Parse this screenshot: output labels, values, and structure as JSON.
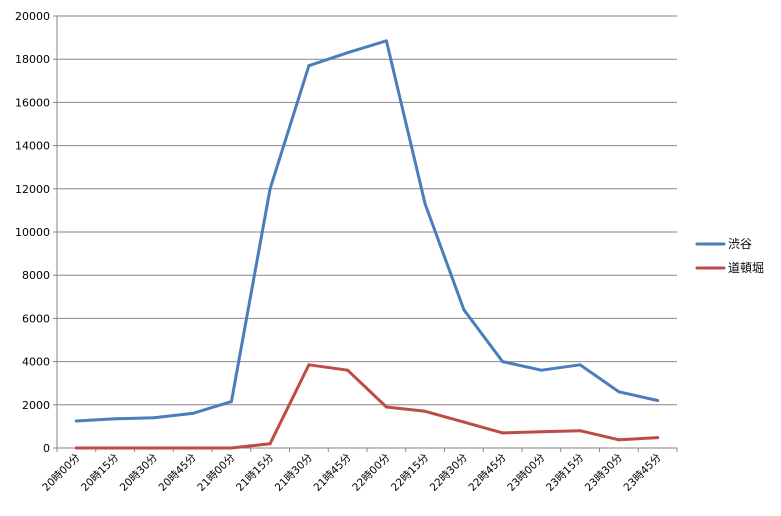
{
  "chart_data": {
    "type": "line",
    "title": "",
    "xlabel": "",
    "ylabel": "",
    "ylim": [
      0,
      20000
    ],
    "yticks": [
      0,
      2000,
      4000,
      6000,
      8000,
      10000,
      12000,
      14000,
      16000,
      18000,
      20000
    ],
    "grid": true,
    "legend_position": "right",
    "categories": [
      "20時00分",
      "20時15分",
      "20時30分",
      "20時45分",
      "21時00分",
      "21時15分",
      "21時30分",
      "21時45分",
      "22時00分",
      "22時15分",
      "22時30分",
      "22時45分",
      "23時00分",
      "23時15分",
      "23時30分",
      "23時45分"
    ],
    "series": [
      {
        "name": "渋谷",
        "color": "#4a7ebb",
        "values": [
          1250,
          1350,
          1400,
          1600,
          2150,
          12000,
          17700,
          18300,
          18850,
          11300,
          6400,
          4000,
          3600,
          3850,
          2600,
          2200
        ]
      },
      {
        "name": "道頓堀",
        "color": "#be4b48",
        "values": [
          0,
          0,
          0,
          0,
          0,
          200,
          3850,
          3600,
          1900,
          1700,
          1200,
          700,
          750,
          800,
          380,
          480
        ]
      }
    ]
  }
}
